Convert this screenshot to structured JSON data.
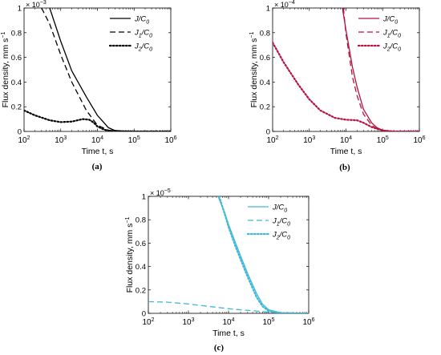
{
  "chart_data": [
    {
      "type": "line",
      "panel_label": "(a)",
      "xlabel": "Time t, s",
      "ylabel": "Flux density, mm s",
      "ylabel_sup": "−1",
      "exponent_base": "× 10",
      "exponent_power": "−3",
      "xscale": "log",
      "xlim": [
        100,
        1000000
      ],
      "ylim": [
        0,
        1
      ],
      "xticks": [
        {
          "value": 100,
          "base": "10",
          "sup": "2"
        },
        {
          "value": 1000,
          "base": "10",
          "sup": "3"
        },
        {
          "value": 10000,
          "base": "10",
          "sup": "4"
        },
        {
          "value": 100000,
          "base": "10",
          "sup": "5"
        },
        {
          "value": 1000000,
          "base": "10",
          "sup": "6"
        }
      ],
      "yticks": [
        {
          "value": 0,
          "label": "0"
        },
        {
          "value": 0.2,
          "label": "0.2"
        },
        {
          "value": 0.4,
          "label": "0.4"
        },
        {
          "value": 0.6,
          "label": "0.6"
        },
        {
          "value": 0.8,
          "label": "0.8"
        },
        {
          "value": 1,
          "label": "1"
        }
      ],
      "legend_position": "top-right",
      "series": [
        {
          "name": "J/C",
          "name_sub": "0",
          "color": "#000000",
          "dash": "solid",
          "x": [
            500,
            1000,
            2000,
            5000,
            10000,
            20000,
            30000,
            50000,
            100000,
            1000000
          ],
          "y": [
            1.0,
            0.73,
            0.49,
            0.28,
            0.13,
            0.03,
            0.008,
            0.002,
            0.0,
            0.0
          ]
        },
        {
          "name": "J",
          "name_sub": "1",
          "name_tail": "/C",
          "name_tail_sub": "0",
          "color": "#000000",
          "dash": "dashed",
          "x": [
            300,
            500,
            1000,
            2000,
            5000,
            10000,
            20000,
            30000,
            100000,
            1000000
          ],
          "y": [
            1.0,
            0.87,
            0.62,
            0.4,
            0.17,
            0.05,
            0.01,
            0.003,
            0.0,
            0.0
          ]
        },
        {
          "name": "J",
          "name_sub": "2",
          "name_tail": "/C",
          "name_tail_sub": "0",
          "color": "#000000",
          "dash": "dotted",
          "x": [
            100,
            200,
            500,
            1000,
            2000,
            4000,
            6000,
            8000,
            10000,
            15000,
            20000,
            30000,
            100000,
            1000000
          ],
          "y": [
            0.17,
            0.13,
            0.09,
            0.075,
            0.08,
            0.1,
            0.095,
            0.07,
            0.04,
            0.015,
            0.006,
            0.002,
            0.0,
            0.0
          ]
        }
      ]
    },
    {
      "type": "line",
      "panel_label": "(b)",
      "xlabel": "Time t, s",
      "ylabel": "Flux density, mm s",
      "ylabel_sup": "−1",
      "exponent_base": "× 10",
      "exponent_power": "−4",
      "xscale": "log",
      "xlim": [
        100,
        1000000
      ],
      "ylim": [
        0,
        1
      ],
      "xticks": [
        {
          "value": 100,
          "base": "10",
          "sup": "2"
        },
        {
          "value": 1000,
          "base": "10",
          "sup": "3"
        },
        {
          "value": 10000,
          "base": "10",
          "sup": "4"
        },
        {
          "value": 100000,
          "base": "10",
          "sup": "5"
        },
        {
          "value": 1000000,
          "base": "10",
          "sup": "6"
        }
      ],
      "yticks": [
        {
          "value": 0,
          "label": "0"
        },
        {
          "value": 0.2,
          "label": "0.2"
        },
        {
          "value": 0.4,
          "label": "0.4"
        },
        {
          "value": 0.6,
          "label": "0.6"
        },
        {
          "value": 0.8,
          "label": "0.8"
        },
        {
          "value": 1,
          "label": "1"
        }
      ],
      "legend_position": "top-right",
      "series": [
        {
          "name": "J/C",
          "name_sub": "0",
          "color": "#b5123f",
          "dash": "solid",
          "x": [
            8000,
            10000,
            15000,
            20000,
            30000,
            50000,
            70000,
            100000,
            200000,
            1000000
          ],
          "y": [
            1.0,
            0.82,
            0.52,
            0.36,
            0.18,
            0.07,
            0.03,
            0.01,
            0.0,
            0.0
          ]
        },
        {
          "name": "J",
          "name_sub": "1",
          "name_tail": "/C",
          "name_tail_sub": "0",
          "color": "#b5123f",
          "dash": "dashed",
          "x": [
            8500,
            10000,
            15000,
            20000,
            30000,
            50000,
            70000,
            100000,
            200000,
            1000000
          ],
          "y": [
            1.0,
            0.79,
            0.44,
            0.29,
            0.14,
            0.05,
            0.02,
            0.006,
            0.0,
            0.0
          ]
        },
        {
          "name": "J",
          "name_sub": "2",
          "name_tail": "/C",
          "name_tail_sub": "0",
          "color": "#b5123f",
          "dash": "dotted",
          "x": [
            100,
            200,
            500,
            1000,
            2000,
            5000,
            10000,
            20000,
            30000,
            50000,
            100000,
            200000,
            1000000
          ],
          "y": [
            0.72,
            0.56,
            0.38,
            0.26,
            0.17,
            0.11,
            0.095,
            0.09,
            0.07,
            0.035,
            0.008,
            0.0,
            0.0
          ]
        }
      ]
    },
    {
      "type": "line",
      "panel_label": "(c)",
      "xlabel": "Time t, s",
      "ylabel": "Flux density, mm s",
      "ylabel_sup": "−1",
      "exponent_base": "× 10",
      "exponent_power": "−5",
      "xscale": "log",
      "xlim": [
        100,
        1000000
      ],
      "ylim": [
        0,
        1
      ],
      "xticks": [
        {
          "value": 100,
          "base": "10",
          "sup": "2"
        },
        {
          "value": 1000,
          "base": "10",
          "sup": "3"
        },
        {
          "value": 10000,
          "base": "10",
          "sup": "4"
        },
        {
          "value": 100000,
          "base": "10",
          "sup": "5"
        },
        {
          "value": 1000000,
          "base": "10",
          "sup": "6"
        }
      ],
      "yticks": [
        {
          "value": 0,
          "label": "0"
        },
        {
          "value": 0.2,
          "label": "0.2"
        },
        {
          "value": 0.4,
          "label": "0.4"
        },
        {
          "value": 0.6,
          "label": "0.6"
        },
        {
          "value": 0.8,
          "label": "0.8"
        },
        {
          "value": 1,
          "label": "1"
        }
      ],
      "legend_position": "top-right",
      "series": [
        {
          "name": "J/C",
          "name_sub": "0",
          "color": "#3fb7d8",
          "dash": "solid",
          "x": [
            5500,
            8000,
            10000,
            15000,
            20000,
            30000,
            50000,
            70000,
            100000,
            200000,
            1000000
          ],
          "y": [
            1.0,
            0.86,
            0.76,
            0.6,
            0.49,
            0.34,
            0.17,
            0.08,
            0.03,
            0.005,
            0.0
          ]
        },
        {
          "name": "J",
          "name_sub": "1",
          "name_tail": "/C",
          "name_tail_sub": "0",
          "color": "#3fb7d8",
          "dash": "dashed",
          "x": [
            100,
            300,
            1000,
            3000,
            10000,
            20000,
            50000,
            100000,
            200000,
            1000000
          ],
          "y": [
            0.1,
            0.095,
            0.08,
            0.06,
            0.04,
            0.03,
            0.02,
            0.01,
            0.003,
            0.0
          ]
        },
        {
          "name": "J",
          "name_sub": "2",
          "name_tail": "/C",
          "name_tail_sub": "0",
          "color": "#3fb7d8",
          "dash": "dotted",
          "x": [
            5800,
            8000,
            10000,
            15000,
            20000,
            30000,
            50000,
            70000,
            100000,
            200000,
            1000000
          ],
          "y": [
            1.0,
            0.85,
            0.74,
            0.57,
            0.46,
            0.31,
            0.14,
            0.06,
            0.02,
            0.003,
            0.0
          ]
        }
      ]
    }
  ]
}
